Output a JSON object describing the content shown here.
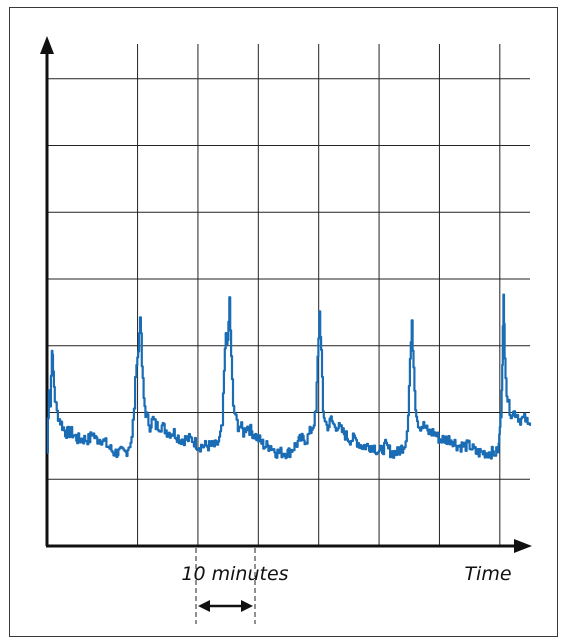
{
  "chart_data": {
    "type": "line",
    "title": "",
    "xlabel": "Time",
    "ylabel": "",
    "scale_annotation": "10 minutes",
    "x_unit": "minutes",
    "xlim": [
      0,
      80
    ],
    "ylim": [
      0,
      8
    ],
    "grid": true,
    "series": [
      {
        "color": "#1a6db5",
        "x": [
          0,
          0.3,
          0.5,
          0.8,
          1.0,
          1.3,
          1.6,
          2.0,
          2.5,
          3,
          4,
          5,
          6,
          7,
          7.5,
          8,
          9,
          10,
          11,
          12,
          13,
          13.5,
          14,
          14.4,
          14.8,
          15.1,
          15.4,
          15.7,
          16.0,
          16.3,
          16.6,
          17,
          17.5,
          18,
          19,
          20,
          21,
          22,
          23,
          24,
          25,
          26,
          27,
          28,
          28.5,
          29,
          29.3,
          29.6,
          29.9,
          30.2,
          30.5,
          30.8,
          31.2,
          31.6,
          32,
          32.5,
          33,
          34,
          35,
          36,
          37,
          38,
          39,
          40,
          41,
          42,
          43,
          44,
          44.5,
          44.8,
          45.1,
          45.4,
          45.7,
          46.0,
          46.3,
          46.6,
          47,
          47.5,
          48,
          49,
          50,
          51,
          52,
          53,
          54,
          55,
          56,
          57,
          58,
          59,
          59.4,
          59.8,
          60.1,
          60.4,
          60.7,
          61.0,
          61.3,
          61.6,
          62,
          62.5,
          63,
          64,
          65,
          66,
          67,
          68,
          69,
          70,
          71,
          72,
          73,
          74,
          74.4,
          74.8,
          75.0,
          75.2,
          75.4,
          75.6,
          75.8,
          76.1,
          76.4,
          76.8,
          77.2,
          77.7,
          78.2,
          78.7,
          79.2,
          79.6,
          80
        ],
        "values": [
          1.4,
          2.4,
          2.1,
          3.0,
          2.6,
          2.2,
          2.0,
          1.9,
          1.8,
          1.7,
          1.7,
          1.6,
          1.6,
          1.6,
          1.7,
          1.6,
          1.6,
          1.5,
          1.4,
          1.4,
          1.4,
          1.5,
          1.6,
          2.1,
          2.8,
          2.9,
          3.5,
          2.7,
          2.2,
          2.0,
          1.9,
          1.8,
          1.9,
          1.8,
          1.8,
          1.7,
          1.7,
          1.6,
          1.6,
          1.6,
          1.5,
          1.5,
          1.5,
          1.5,
          1.6,
          1.8,
          2.6,
          3.2,
          3.0,
          3.7,
          2.8,
          2.1,
          1.9,
          1.8,
          1.8,
          1.7,
          1.8,
          1.7,
          1.6,
          1.5,
          1.5,
          1.4,
          1.4,
          1.4,
          1.5,
          1.6,
          1.6,
          1.8,
          2.0,
          2.8,
          3.5,
          2.9,
          2.0,
          1.9,
          1.8,
          1.8,
          1.9,
          1.8,
          1.8,
          1.7,
          1.6,
          1.6,
          1.5,
          1.5,
          1.5,
          1.4,
          1.5,
          1.4,
          1.4,
          1.5,
          1.6,
          2.0,
          2.8,
          3.3,
          2.7,
          2.1,
          1.9,
          1.8,
          1.8,
          1.8,
          1.7,
          1.7,
          1.6,
          1.6,
          1.6,
          1.5,
          1.5,
          1.5,
          1.4,
          1.4,
          1.4,
          1.4,
          1.4,
          1.5,
          1.8,
          2.0,
          2.8,
          3.7,
          2.9,
          2.3,
          2.1,
          2.0,
          2.0,
          2.0,
          1.9,
          1.9,
          1.9,
          1.8,
          1.8
        ]
      }
    ]
  }
}
